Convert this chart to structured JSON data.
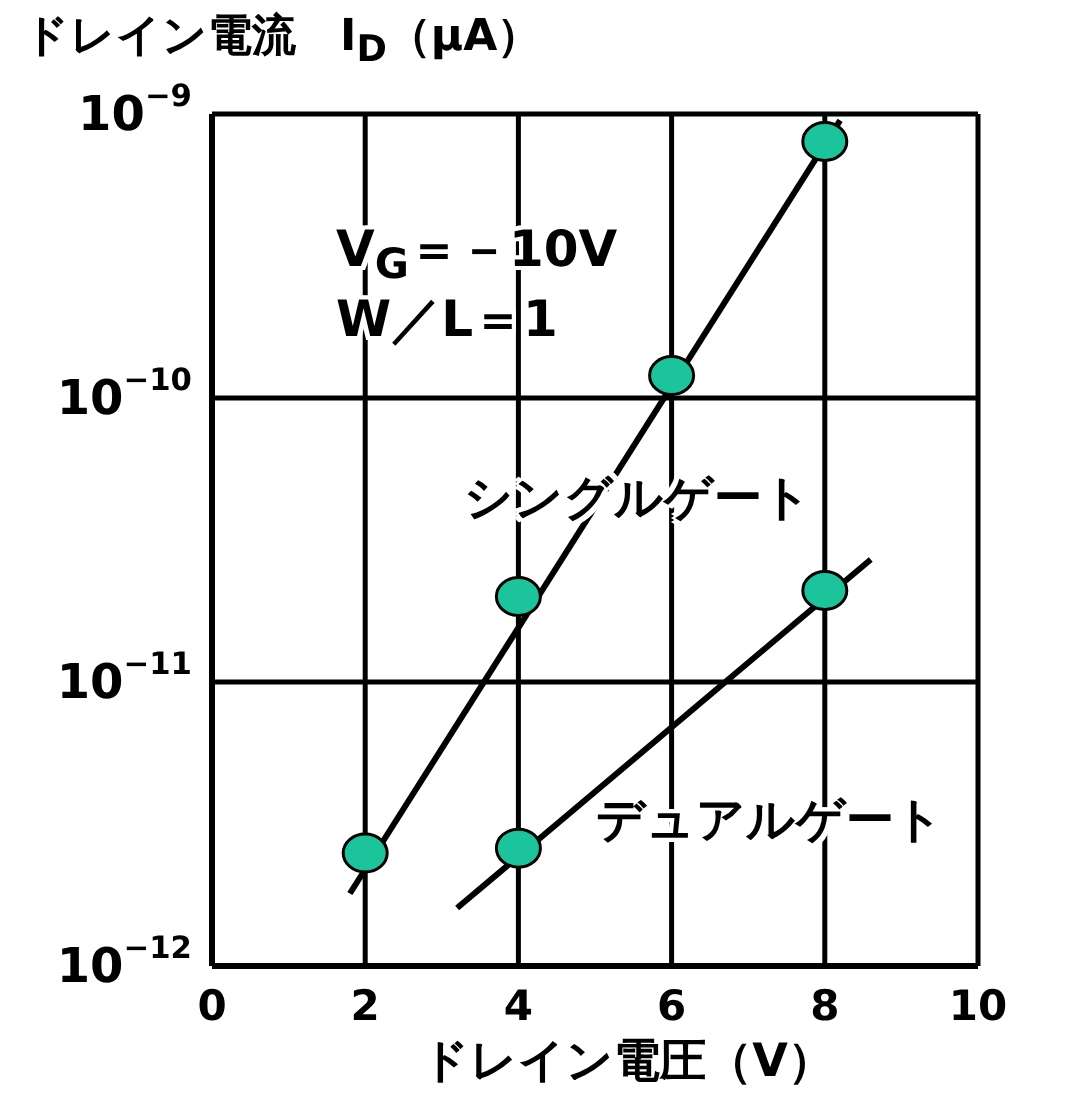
{
  "chart_data": {
    "type": "scatter",
    "ylabel": "ドレイン電流　I$_{D}$（μA）",
    "xlabel": "ドレイン電圧（V）",
    "annotations": [
      "V$_{G}$＝－10V",
      "W／L＝1"
    ],
    "xlim": [
      0,
      10
    ],
    "xticks": [
      0,
      2,
      4,
      6,
      8,
      10
    ],
    "ylim": [
      1e-12,
      1e-09
    ],
    "yticks": [
      {
        "value": 1e-12,
        "label": "10$^{−12}$"
      },
      {
        "value": 1e-11,
        "label": "10$^{−11}$"
      },
      {
        "value": 1e-10,
        "label": "10$^{−10}$"
      },
      {
        "value": 1e-09,
        "label": "10$^{−9}$"
      }
    ],
    "log": "y",
    "grid": true,
    "marker": "circle",
    "series": [
      {
        "color": "#1bc49a",
        "x": [
          2,
          4,
          6,
          8
        ],
        "values": [
          2.5e-12,
          2e-11,
          1.2e-10,
          8e-10
        ]
      },
      {
        "color": "#1bc49a",
        "x": [
          4,
          8
        ],
        "values": [
          2.6e-12,
          2.1e-11
        ]
      },
      {
        "type": "line",
        "name": "シングルゲート",
        "color": "#000000",
        "marker": "none",
        "x": [
          1.8,
          8.2
        ],
        "values": [
          1.8e-12,
          9.5e-10
        ]
      },
      {
        "type": "line",
        "name": "デュアルゲート",
        "color": "#000000",
        "marker": "none",
        "x": [
          3.2,
          8.6
        ],
        "values": [
          1.6e-12,
          2.7e-11
        ]
      }
    ]
  }
}
